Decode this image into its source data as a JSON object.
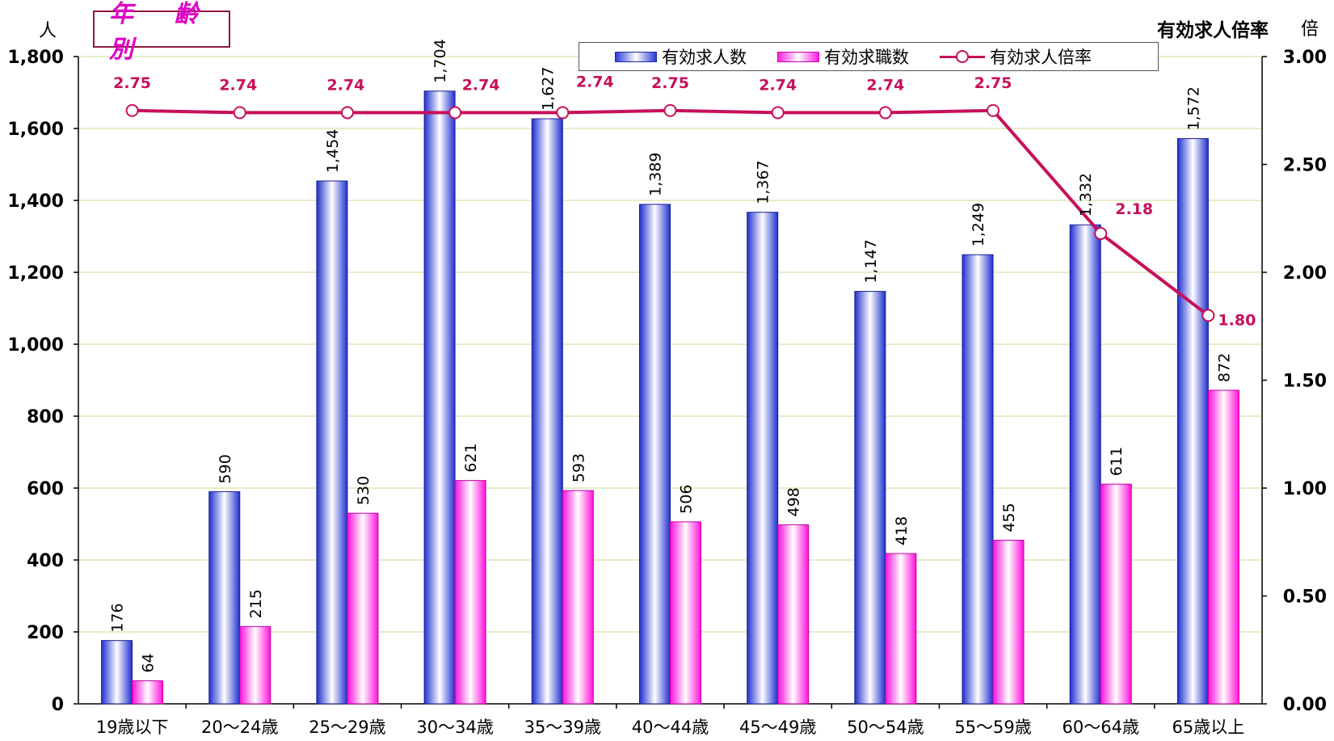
{
  "header": {
    "title": "年 齢 別",
    "left_unit": "人",
    "right_axis_title": "有効求人倍率",
    "right_unit": "倍"
  },
  "legend": {
    "series1": "有効求人数",
    "series2": "有効求職数",
    "series3": "有効求人倍率"
  },
  "colors": {
    "bar1": "#2a3ad8",
    "bar2": "#ff20e0",
    "line": "#c8105a",
    "grid": "#c8dc8c"
  },
  "chart_data": {
    "type": "bar",
    "categories": [
      "19歳以下",
      "20～24歳",
      "25～29歳",
      "30～34歳",
      "35～39歳",
      "40～44歳",
      "45～49歳",
      "50～54歳",
      "55～59歳",
      "60～64歳",
      "65歳以上"
    ],
    "series": [
      {
        "name": "有効求人数",
        "type": "bar",
        "axis": "left",
        "values": [
          176,
          590,
          1454,
          1704,
          1627,
          1389,
          1367,
          1147,
          1249,
          1332,
          1572
        ],
        "labels": [
          "176",
          "590",
          "1,454",
          "1,704",
          "1,627",
          "1,389",
          "1,367",
          "1,147",
          "1,249",
          "1,332",
          "1,572"
        ]
      },
      {
        "name": "有効求職数",
        "type": "bar",
        "axis": "left",
        "values": [
          64,
          215,
          530,
          621,
          593,
          506,
          498,
          418,
          455,
          611,
          872
        ],
        "labels": [
          "64",
          "215",
          "530",
          "621",
          "593",
          "506",
          "498",
          "418",
          "455",
          "611",
          "872"
        ]
      },
      {
        "name": "有効求人倍率",
        "type": "line",
        "axis": "right",
        "values": [
          2.75,
          2.74,
          2.74,
          2.74,
          2.74,
          2.75,
          2.74,
          2.74,
          2.75,
          2.18,
          1.8
        ],
        "labels": [
          "2.75",
          "2.74",
          "2.74",
          "2.74",
          "2.74",
          "2.75",
          "2.74",
          "2.74",
          "2.75",
          "2.18",
          "1.80"
        ]
      }
    ],
    "ylim": [
      0,
      1800
    ],
    "yticks": [
      "0",
      "200",
      "400",
      "600",
      "800",
      "1,000",
      "1,200",
      "1,400",
      "1,600",
      "1,800"
    ],
    "y2lim": [
      0,
      3.0
    ],
    "y2ticks": [
      "0.00",
      "0.50",
      "1.00",
      "1.50",
      "2.00",
      "2.50",
      "3.00"
    ],
    "grid": true,
    "legend_position": "top-right"
  }
}
